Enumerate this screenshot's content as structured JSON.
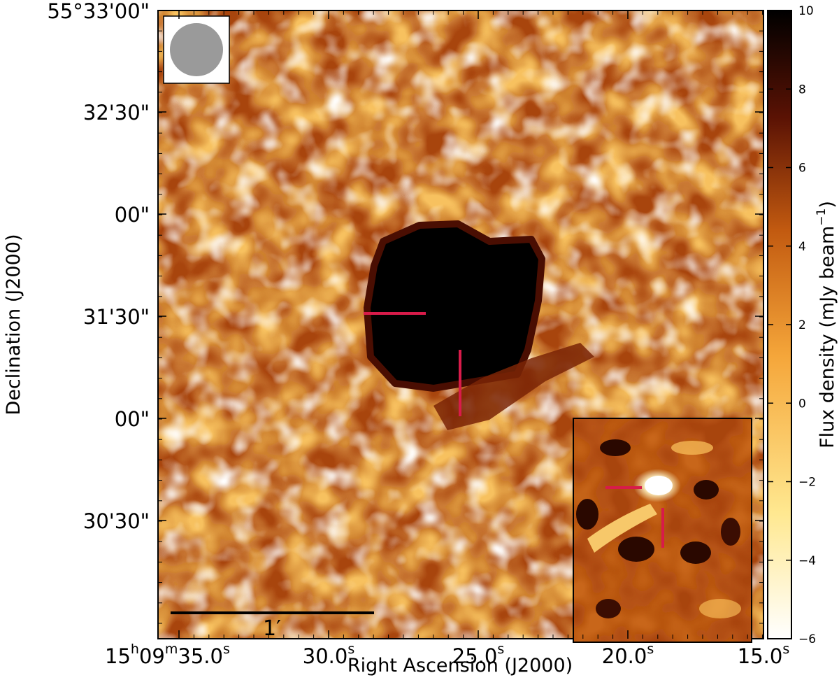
{
  "image": {
    "xlabel": "Right Ascension (J2000)",
    "ylabel": "Declination (J2000)",
    "colorbar_label": "Flux density (mJy beam",
    "colorbar_label_unit_exp": "−1",
    "colorbar_label_close": ")",
    "colorbar_range": [
      -6,
      10
    ],
    "colorbar_ticks": [
      "−6",
      "−4",
      "−2",
      "0",
      "2",
      "4",
      "6",
      "8",
      "10"
    ],
    "ra_ticks": [
      {
        "main": "15",
        "h": "h",
        "mid": "09",
        "m": "m",
        "sec": "35.0",
        "s": "s"
      },
      {
        "sec": "30.0",
        "s": "s"
      },
      {
        "sec": "25.0",
        "s": "s"
      },
      {
        "sec": "20.0",
        "s": "s"
      },
      {
        "sec": "15.0",
        "s": "s"
      }
    ],
    "dec_ticks": [
      "55°33'00\"",
      "32'30\"",
      "00\"",
      "31'30\"",
      "00\"",
      "30'30\""
    ],
    "scale_bar_label": "1′",
    "colormap": [
      "#ffffff",
      "#ffe890",
      "#f5a63a",
      "#c25a10",
      "#5a1204",
      "#000000"
    ],
    "marker_color": "#d81b4a",
    "beam_color": "#9a9a9a"
  }
}
